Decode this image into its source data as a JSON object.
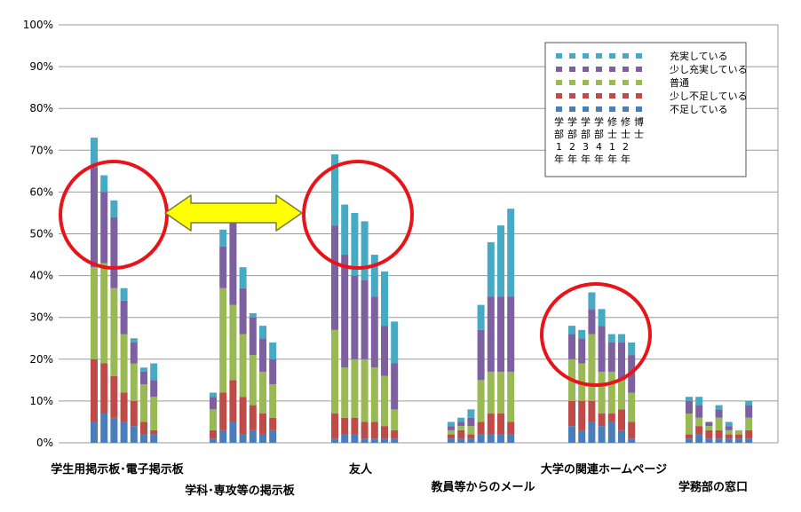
{
  "chart_data": {
    "type": "bar",
    "stacked": true,
    "ylim": [
      0,
      100
    ],
    "yticks": [
      "0%",
      "10%",
      "20%",
      "30%",
      "40%",
      "50%",
      "60%",
      "70%",
      "80%",
      "90%",
      "100%"
    ],
    "grid": true,
    "legend_position": "top-right",
    "series_order": [
      "不足している",
      "少し不足している",
      "普通",
      "少し充実している",
      "充実している"
    ],
    "series_colors": {
      "不足している": "#4a7ebb",
      "少し不足している": "#be4b48",
      "普通": "#98b954",
      "少し充実している": "#7d60a0",
      "充実している": "#46aac5"
    },
    "legend_entries": [
      "充実している",
      "少し充実している",
      "普通",
      "少し不足している",
      "不足している"
    ],
    "group_years": [
      "学部1年",
      "学部2年",
      "学部3年",
      "学部4年",
      "修士1年",
      "修士2年",
      "博士"
    ],
    "groups": [
      {
        "label": "学生用掲示板･電子掲示板",
        "bars": [
          [
            5,
            15,
            22,
            24,
            7
          ],
          [
            7,
            12,
            24,
            17,
            4
          ],
          [
            6,
            10,
            21,
            17,
            4
          ],
          [
            5,
            7,
            14,
            8,
            3
          ],
          [
            4,
            6,
            9,
            5,
            1
          ],
          [
            2,
            3,
            9,
            3,
            1
          ],
          [
            2,
            1,
            8,
            4,
            4
          ]
        ]
      },
      {
        "label": "学科･専攻等の掲示板",
        "bars": [
          [
            1,
            2,
            5,
            3,
            1
          ],
          [
            3,
            9,
            25,
            10,
            4
          ],
          [
            5,
            10,
            18,
            20,
            2
          ],
          [
            2,
            9,
            15,
            11,
            5
          ],
          [
            3,
            6,
            12,
            9,
            1
          ],
          [
            2,
            5,
            10,
            8,
            3
          ],
          [
            3,
            3,
            8,
            6,
            4
          ]
        ]
      },
      {
        "label": "友人",
        "bars": [
          [
            1,
            6,
            20,
            25,
            17
          ],
          [
            2,
            4,
            12,
            27,
            12
          ],
          [
            2,
            4,
            14,
            20,
            15
          ],
          [
            1,
            4,
            15,
            19,
            14
          ],
          [
            1,
            4,
            13,
            17,
            10
          ],
          [
            1,
            3,
            12,
            12,
            13
          ],
          [
            1,
            2,
            5,
            11,
            10
          ]
        ]
      },
      {
        "label": "教員等からのメール",
        "bars": [
          [
            1,
            1,
            1,
            1,
            1
          ],
          [
            1,
            2,
            1,
            1,
            1
          ],
          [
            1,
            1,
            2,
            2,
            2
          ],
          [
            2,
            3,
            10,
            12,
            6
          ],
          [
            2,
            5,
            10,
            18,
            13
          ],
          [
            2,
            5,
            10,
            18,
            17
          ],
          [
            2,
            3,
            12,
            18,
            21
          ]
        ]
      },
      {
        "label": "大学の関連ホームページ",
        "bars": [
          [
            4,
            6,
            10,
            6,
            2
          ],
          [
            3,
            7,
            9,
            6,
            2
          ],
          [
            5,
            5,
            16,
            6,
            4
          ],
          [
            4,
            3,
            10,
            11,
            4
          ],
          [
            5,
            2,
            10,
            7,
            2
          ],
          [
            3,
            5,
            7,
            9,
            2
          ],
          [
            1,
            4,
            7,
            9,
            3
          ]
        ]
      },
      {
        "label": "学務部の窓口",
        "bars": [
          [
            1,
            1,
            5,
            3,
            1
          ],
          [
            2,
            2,
            2,
            3,
            2
          ],
          [
            1,
            2,
            1,
            1,
            0
          ],
          [
            1,
            2,
            3,
            2,
            1
          ],
          [
            1,
            1,
            1,
            1,
            1
          ],
          [
            1,
            1,
            1,
            0,
            0
          ],
          [
            1,
            2,
            3,
            3,
            1
          ]
        ]
      }
    ]
  }
}
